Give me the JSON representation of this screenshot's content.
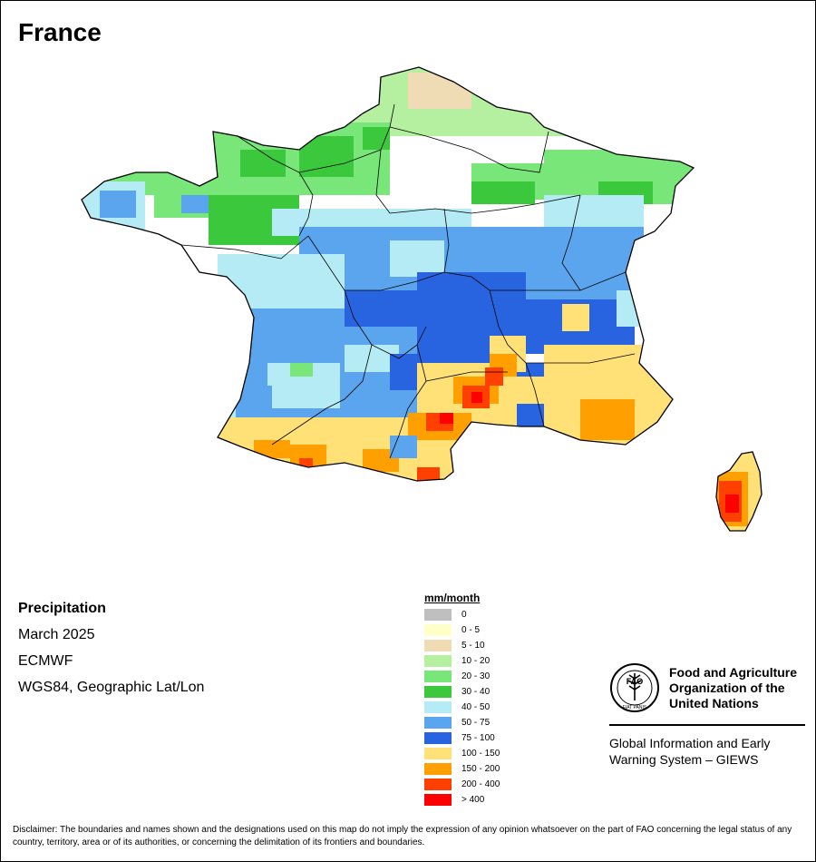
{
  "title": "France",
  "info": {
    "variable": "Precipitation",
    "period": "March 2025",
    "source": "ECMWF",
    "projection": "WGS84, Geographic Lat/Lon"
  },
  "legend": {
    "title": "mm/month",
    "classes": [
      {
        "label": "0",
        "color": "#bfbfbf"
      },
      {
        "label": "0 - 5",
        "color": "#ffffc8"
      },
      {
        "label": "5 - 10",
        "color": "#f0dcb4"
      },
      {
        "label": "10 - 20",
        "color": "#b4f0a0"
      },
      {
        "label": "20 - 30",
        "color": "#78e678"
      },
      {
        "label": "30 - 40",
        "color": "#3cc83c"
      },
      {
        "label": "40 - 50",
        "color": "#b4ebf5"
      },
      {
        "label": "50 - 75",
        "color": "#5aa5ee"
      },
      {
        "label": "75 - 100",
        "color": "#2864e0"
      },
      {
        "label": "100 - 150",
        "color": "#ffe178"
      },
      {
        "label": "150 - 200",
        "color": "#ffa000"
      },
      {
        "label": "200 - 400",
        "color": "#ff4000"
      },
      {
        "label": "> 400",
        "color": "#ff0000"
      }
    ]
  },
  "logo": {
    "emblem_text": "FAO",
    "motto": "FIAT PANIS",
    "org_lines": [
      "Food and Agriculture",
      "Organization of the",
      "United Nations"
    ],
    "system_lines": [
      "Global Information and Early",
      "Warning System – GIEWS"
    ]
  },
  "disclaimer": "Disclaimer: The boundaries and names shown and the designations used on this map do not imply the expression of any opinion whatsoever on the part of FAO concerning the legal status of any country, territory, area or of its authorities, or concerning the delimitation of its frontiers and boundaries."
}
